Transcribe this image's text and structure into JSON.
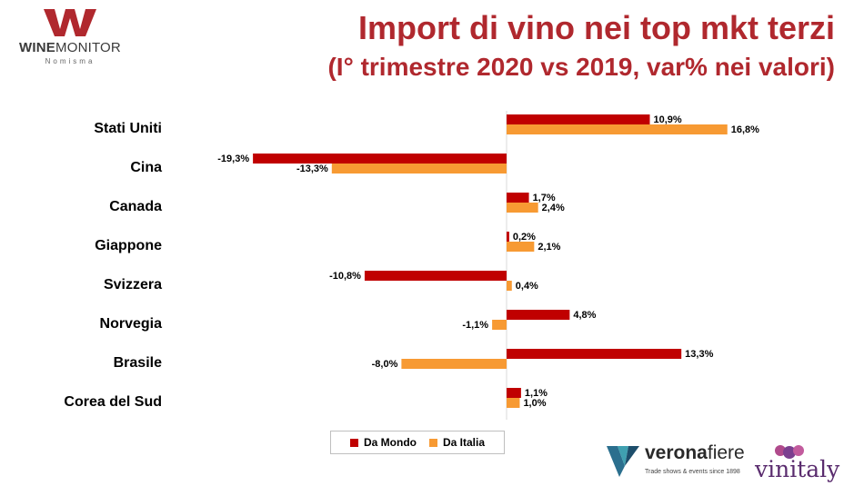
{
  "header": {
    "title": "Import di vino nei top mkt terzi",
    "subtitle": "(I° trimestre 2020 vs 2019, var% nei valori)"
  },
  "logos": {
    "winemonitor": {
      "brand_bold": "WINE",
      "brand_rest": "MONITOR",
      "sub": "Nomisma"
    },
    "veronafiere": {
      "name_bold": "verona",
      "name_rest": "fiere",
      "tagline": "Trade shows & events since 1898"
    },
    "vinitaly": {
      "name": "vinitaly"
    }
  },
  "colors": {
    "accent": "#b0282e",
    "mondo": "#c00000",
    "italia": "#f79a33"
  },
  "legend": {
    "mondo": "Da Mondo",
    "italia": "Da Italia"
  },
  "chart_data": {
    "type": "bar",
    "orientation": "horizontal",
    "categories": [
      "Stati Uniti",
      "Cina",
      "Canada",
      "Giappone",
      "Svizzera",
      "Norvegia",
      "Brasile",
      "Corea del Sud"
    ],
    "series": [
      {
        "name": "Da Mondo",
        "values": [
          10.9,
          -19.3,
          1.7,
          0.2,
          -10.8,
          4.8,
          13.3,
          1.1
        ],
        "labels": [
          "10,9%",
          "-19,3%",
          "1,7%",
          "0,2%",
          "-10,8%",
          "4,8%",
          "13,3%",
          "1,1%"
        ]
      },
      {
        "name": "Da Italia",
        "values": [
          16.8,
          -13.3,
          2.4,
          2.1,
          0.4,
          -1.1,
          -8.0,
          1.0
        ],
        "labels": [
          "16,8%",
          "-13,3%",
          "2,4%",
          "2,1%",
          "0,4%",
          "-1,1%",
          "-8,0%",
          "1,0%"
        ]
      }
    ],
    "legend_position": "bottom",
    "grid": false
  }
}
